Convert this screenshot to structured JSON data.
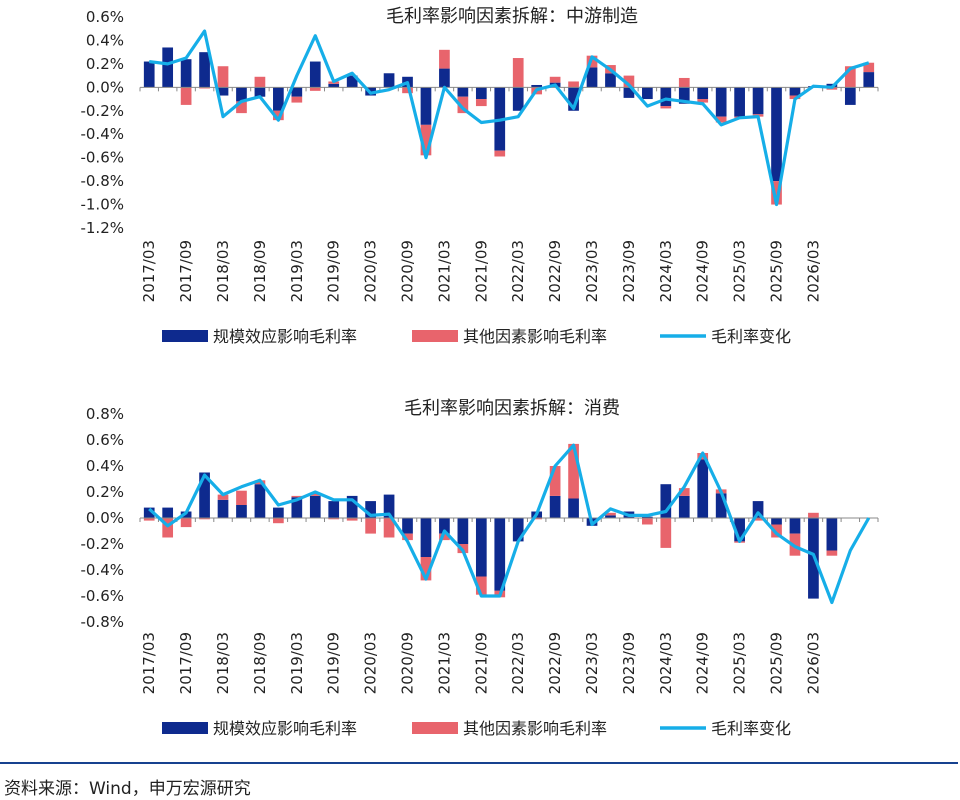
{
  "colors": {
    "scale": "#0e2a8e",
    "other": "#e8646c",
    "change": "#16aee8"
  },
  "legend": {
    "scale": "规模效应影响毛利率",
    "other": "其他因素影响毛利率",
    "change": "毛利率变化"
  },
  "source": "资料来源：Wind，申万宏源研究",
  "chart_data": [
    {
      "type": "bar",
      "title": "毛利率影响因素拆解：中游制造",
      "legend_position": "bottom",
      "ylim": [
        -1.2,
        0.6
      ],
      "yticks": [
        0.6,
        0.4,
        0.2,
        0.0,
        -0.2,
        -0.4,
        -0.6,
        -0.8,
        -1.0,
        -1.2
      ],
      "ytick_labels": [
        "0.6%",
        "0.4%",
        "0.2%",
        "0.0%",
        "-0.2%",
        "-0.4%",
        "-0.6%",
        "-0.8%",
        "-1.0%",
        "-1.2%"
      ],
      "x_labels": [
        "2017/03",
        "2017/09",
        "2018/03",
        "2018/09",
        "2019/03",
        "2019/09",
        "2020/03",
        "2020/09",
        "2021/03",
        "2021/09",
        "2022/03",
        "2022/09",
        "2023/03",
        "2023/09",
        "2024/03",
        "2024/09",
        "2025/03",
        "2025/09",
        "2026/03"
      ],
      "series": [
        {
          "name": "规模效应影响毛利率",
          "values": [
            0.22,
            0.34,
            0.24,
            0.3,
            -0.07,
            -0.12,
            -0.08,
            -0.2,
            -0.08,
            0.22,
            0.03,
            0.1,
            -0.07,
            0.12,
            0.09,
            -0.32,
            0.16,
            -0.08,
            -0.1,
            -0.54,
            -0.2,
            0.02,
            0.04,
            -0.2,
            0.17,
            0.12,
            -0.09,
            -0.1,
            -0.16,
            -0.14,
            -0.1,
            -0.25,
            -0.25,
            -0.23,
            -0.8,
            -0.07,
            0.01,
            0.03,
            -0.15,
            0.13
          ]
        },
        {
          "name": "其他因素影响毛利率",
          "values": [
            0.0,
            0.0,
            -0.15,
            -0.01,
            0.18,
            -0.1,
            0.09,
            -0.08,
            -0.05,
            -0.03,
            0.02,
            0.0,
            0.0,
            0.0,
            -0.05,
            -0.26,
            0.16,
            -0.14,
            -0.06,
            -0.05,
            0.25,
            -0.06,
            0.05,
            0.05,
            0.1,
            0.07,
            0.1,
            0.0,
            -0.02,
            0.08,
            -0.03,
            -0.05,
            -0.01,
            -0.02,
            -0.2,
            -0.03,
            0.0,
            -0.02,
            0.18,
            0.08
          ]
        },
        {
          "name": "毛利率变化",
          "values": [
            0.22,
            0.2,
            0.25,
            0.48,
            -0.25,
            -0.12,
            -0.08,
            -0.28,
            0.1,
            0.44,
            0.05,
            0.12,
            -0.05,
            -0.02,
            0.04,
            -0.6,
            0.0,
            -0.18,
            -0.3,
            -0.28,
            -0.25,
            -0.02,
            0.02,
            -0.18,
            0.26,
            0.15,
            0.02,
            -0.16,
            -0.1,
            -0.12,
            -0.14,
            -0.32,
            -0.26,
            -0.25,
            -1.0,
            -0.1,
            0.01,
            0.0,
            0.16,
            0.21
          ]
        }
      ]
    },
    {
      "type": "bar",
      "title": "毛利率影响因素拆解：消费",
      "legend_position": "bottom",
      "ylim": [
        -0.8,
        0.8
      ],
      "yticks": [
        0.8,
        0.6,
        0.4,
        0.2,
        0.0,
        -0.2,
        -0.4,
        -0.6,
        -0.8
      ],
      "ytick_labels": [
        "0.8%",
        "0.6%",
        "0.4%",
        "0.2%",
        "0.0%",
        "-0.2%",
        "-0.4%",
        "-0.6%",
        "-0.8%"
      ],
      "x_labels": [
        "2017/03",
        "2017/09",
        "2018/03",
        "2018/09",
        "2019/03",
        "2019/09",
        "2020/03",
        "2020/09",
        "2021/03",
        "2021/09",
        "2022/03",
        "2022/09",
        "2023/03",
        "2023/09",
        "2024/03",
        "2024/09",
        "2025/03",
        "2025/09",
        "2026/03"
      ],
      "series": [
        {
          "name": "规模效应影响毛利率",
          "values": [
            0.08,
            0.08,
            0.05,
            0.35,
            0.14,
            0.1,
            0.26,
            0.08,
            0.16,
            0.17,
            0.13,
            0.17,
            0.13,
            0.18,
            -0.12,
            -0.3,
            -0.12,
            -0.2,
            -0.45,
            -0.56,
            -0.18,
            0.05,
            0.17,
            0.15,
            -0.06,
            0.02,
            0.05,
            0.01,
            0.26,
            0.17,
            0.45,
            0.19,
            -0.18,
            0.13,
            -0.05,
            -0.12,
            -0.62,
            -0.25,
            0.0,
            0.0
          ]
        },
        {
          "name": "其他因素影响毛利率",
          "values": [
            -0.02,
            -0.15,
            -0.07,
            -0.01,
            0.04,
            0.11,
            0.03,
            -0.04,
            0.01,
            0.02,
            -0.01,
            -0.02,
            -0.12,
            -0.15,
            -0.05,
            -0.18,
            -0.05,
            -0.07,
            -0.14,
            -0.05,
            0.0,
            -0.01,
            0.23,
            0.42,
            0.0,
            0.02,
            0.0,
            -0.05,
            -0.23,
            0.06,
            0.05,
            0.03,
            -0.01,
            -0.02,
            -0.1,
            -0.17,
            0.04,
            -0.04,
            0.0,
            0.0
          ]
        },
        {
          "name": "毛利率变化",
          "values": [
            0.07,
            -0.06,
            0.04,
            0.33,
            0.18,
            0.24,
            0.29,
            0.1,
            0.14,
            0.2,
            0.14,
            0.14,
            0.02,
            0.03,
            -0.18,
            -0.47,
            -0.1,
            -0.25,
            -0.6,
            -0.6,
            -0.18,
            0.03,
            0.4,
            0.56,
            -0.05,
            0.07,
            0.02,
            0.02,
            0.05,
            0.24,
            0.5,
            0.2,
            -0.18,
            0.04,
            -0.12,
            -0.22,
            -0.28,
            -0.65,
            -0.25,
            0.0
          ]
        }
      ]
    }
  ]
}
